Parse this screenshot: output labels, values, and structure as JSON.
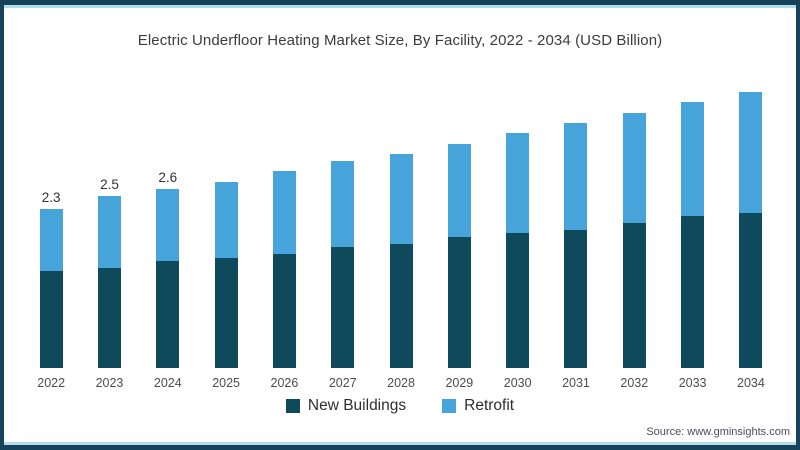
{
  "frame": {
    "border_color": "#16425A",
    "accent_line_color": "#B3DDEF"
  },
  "source": "Source: www.gminsights.com",
  "chart_data": {
    "type": "bar",
    "stacked": true,
    "title": "Electric Underfloor Heating Market Size, By Facility, 2022 - 2034 (USD Billion)",
    "unit": "USD Billion",
    "categories": [
      "2022",
      "2023",
      "2024",
      "2025",
      "2026",
      "2027",
      "2028",
      "2029",
      "2030",
      "2031",
      "2032",
      "2033",
      "2034"
    ],
    "series": [
      {
        "name": "New Buildings",
        "color": "#0F4A5C",
        "values": [
          1.4,
          1.45,
          1.55,
          1.6,
          1.65,
          1.75,
          1.8,
          1.9,
          1.95,
          2.0,
          2.1,
          2.2,
          2.25
        ]
      },
      {
        "name": "Retrofit",
        "color": "#47A4DA",
        "values": [
          0.9,
          1.05,
          1.05,
          1.1,
          1.2,
          1.25,
          1.3,
          1.35,
          1.45,
          1.55,
          1.6,
          1.65,
          1.75
        ]
      }
    ],
    "totals": [
      2.3,
      2.5,
      2.6,
      2.7,
      2.85,
      3.0,
      3.1,
      3.25,
      3.4,
      3.55,
      3.7,
      3.85,
      4.0
    ],
    "totals_labels": [
      "2.3",
      "2.5",
      "2.6",
      "",
      "",
      "",
      "",
      "",
      "",
      "",
      "",
      "",
      ""
    ],
    "xlabel": "",
    "ylabel": "",
    "ylim": [
      0,
      4.2
    ],
    "grid": false,
    "y_axis_visible": false,
    "legend_position": "bottom"
  }
}
